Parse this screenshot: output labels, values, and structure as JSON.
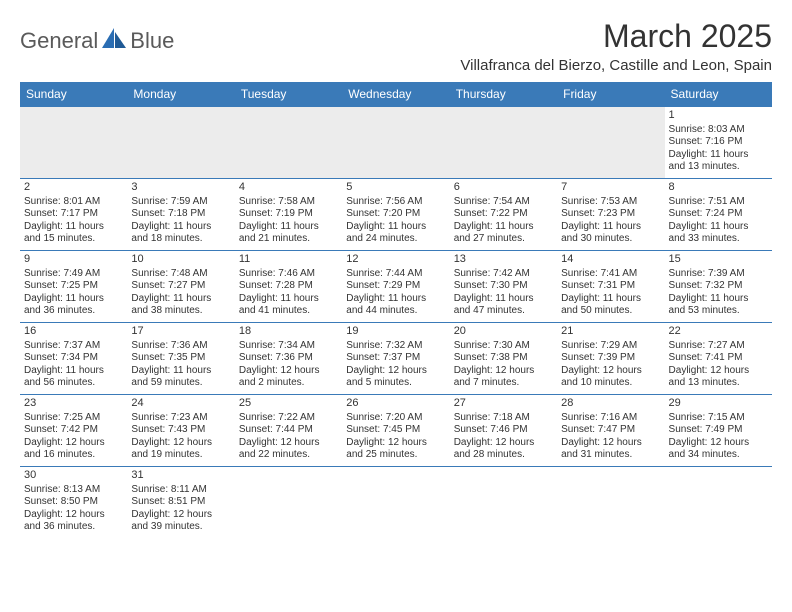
{
  "brand": {
    "name_part1": "General",
    "name_part2": "Blue"
  },
  "title": "March 2025",
  "subtitle": "Villafranca del Bierzo, Castille and Leon, Spain",
  "colors": {
    "header_bg": "#3a7ab8",
    "header_text": "#ffffff",
    "border": "#3a7ab8",
    "body_text": "#333333",
    "logo_gray": "#5a5a5a",
    "logo_blue": "#2a6db3",
    "empty_bg": "#ececec"
  },
  "weekdays": [
    "Sunday",
    "Monday",
    "Tuesday",
    "Wednesday",
    "Thursday",
    "Friday",
    "Saturday"
  ],
  "weeks": [
    [
      null,
      null,
      null,
      null,
      null,
      null,
      {
        "n": "1",
        "sr": "Sunrise: 8:03 AM",
        "ss": "Sunset: 7:16 PM",
        "d1": "Daylight: 11 hours",
        "d2": "and 13 minutes."
      }
    ],
    [
      {
        "n": "2",
        "sr": "Sunrise: 8:01 AM",
        "ss": "Sunset: 7:17 PM",
        "d1": "Daylight: 11 hours",
        "d2": "and 15 minutes."
      },
      {
        "n": "3",
        "sr": "Sunrise: 7:59 AM",
        "ss": "Sunset: 7:18 PM",
        "d1": "Daylight: 11 hours",
        "d2": "and 18 minutes."
      },
      {
        "n": "4",
        "sr": "Sunrise: 7:58 AM",
        "ss": "Sunset: 7:19 PM",
        "d1": "Daylight: 11 hours",
        "d2": "and 21 minutes."
      },
      {
        "n": "5",
        "sr": "Sunrise: 7:56 AM",
        "ss": "Sunset: 7:20 PM",
        "d1": "Daylight: 11 hours",
        "d2": "and 24 minutes."
      },
      {
        "n": "6",
        "sr": "Sunrise: 7:54 AM",
        "ss": "Sunset: 7:22 PM",
        "d1": "Daylight: 11 hours",
        "d2": "and 27 minutes."
      },
      {
        "n": "7",
        "sr": "Sunrise: 7:53 AM",
        "ss": "Sunset: 7:23 PM",
        "d1": "Daylight: 11 hours",
        "d2": "and 30 minutes."
      },
      {
        "n": "8",
        "sr": "Sunrise: 7:51 AM",
        "ss": "Sunset: 7:24 PM",
        "d1": "Daylight: 11 hours",
        "d2": "and 33 minutes."
      }
    ],
    [
      {
        "n": "9",
        "sr": "Sunrise: 7:49 AM",
        "ss": "Sunset: 7:25 PM",
        "d1": "Daylight: 11 hours",
        "d2": "and 36 minutes."
      },
      {
        "n": "10",
        "sr": "Sunrise: 7:48 AM",
        "ss": "Sunset: 7:27 PM",
        "d1": "Daylight: 11 hours",
        "d2": "and 38 minutes."
      },
      {
        "n": "11",
        "sr": "Sunrise: 7:46 AM",
        "ss": "Sunset: 7:28 PM",
        "d1": "Daylight: 11 hours",
        "d2": "and 41 minutes."
      },
      {
        "n": "12",
        "sr": "Sunrise: 7:44 AM",
        "ss": "Sunset: 7:29 PM",
        "d1": "Daylight: 11 hours",
        "d2": "and 44 minutes."
      },
      {
        "n": "13",
        "sr": "Sunrise: 7:42 AM",
        "ss": "Sunset: 7:30 PM",
        "d1": "Daylight: 11 hours",
        "d2": "and 47 minutes."
      },
      {
        "n": "14",
        "sr": "Sunrise: 7:41 AM",
        "ss": "Sunset: 7:31 PM",
        "d1": "Daylight: 11 hours",
        "d2": "and 50 minutes."
      },
      {
        "n": "15",
        "sr": "Sunrise: 7:39 AM",
        "ss": "Sunset: 7:32 PM",
        "d1": "Daylight: 11 hours",
        "d2": "and 53 minutes."
      }
    ],
    [
      {
        "n": "16",
        "sr": "Sunrise: 7:37 AM",
        "ss": "Sunset: 7:34 PM",
        "d1": "Daylight: 11 hours",
        "d2": "and 56 minutes."
      },
      {
        "n": "17",
        "sr": "Sunrise: 7:36 AM",
        "ss": "Sunset: 7:35 PM",
        "d1": "Daylight: 11 hours",
        "d2": "and 59 minutes."
      },
      {
        "n": "18",
        "sr": "Sunrise: 7:34 AM",
        "ss": "Sunset: 7:36 PM",
        "d1": "Daylight: 12 hours",
        "d2": "and 2 minutes."
      },
      {
        "n": "19",
        "sr": "Sunrise: 7:32 AM",
        "ss": "Sunset: 7:37 PM",
        "d1": "Daylight: 12 hours",
        "d2": "and 5 minutes."
      },
      {
        "n": "20",
        "sr": "Sunrise: 7:30 AM",
        "ss": "Sunset: 7:38 PM",
        "d1": "Daylight: 12 hours",
        "d2": "and 7 minutes."
      },
      {
        "n": "21",
        "sr": "Sunrise: 7:29 AM",
        "ss": "Sunset: 7:39 PM",
        "d1": "Daylight: 12 hours",
        "d2": "and 10 minutes."
      },
      {
        "n": "22",
        "sr": "Sunrise: 7:27 AM",
        "ss": "Sunset: 7:41 PM",
        "d1": "Daylight: 12 hours",
        "d2": "and 13 minutes."
      }
    ],
    [
      {
        "n": "23",
        "sr": "Sunrise: 7:25 AM",
        "ss": "Sunset: 7:42 PM",
        "d1": "Daylight: 12 hours",
        "d2": "and 16 minutes."
      },
      {
        "n": "24",
        "sr": "Sunrise: 7:23 AM",
        "ss": "Sunset: 7:43 PM",
        "d1": "Daylight: 12 hours",
        "d2": "and 19 minutes."
      },
      {
        "n": "25",
        "sr": "Sunrise: 7:22 AM",
        "ss": "Sunset: 7:44 PM",
        "d1": "Daylight: 12 hours",
        "d2": "and 22 minutes."
      },
      {
        "n": "26",
        "sr": "Sunrise: 7:20 AM",
        "ss": "Sunset: 7:45 PM",
        "d1": "Daylight: 12 hours",
        "d2": "and 25 minutes."
      },
      {
        "n": "27",
        "sr": "Sunrise: 7:18 AM",
        "ss": "Sunset: 7:46 PM",
        "d1": "Daylight: 12 hours",
        "d2": "and 28 minutes."
      },
      {
        "n": "28",
        "sr": "Sunrise: 7:16 AM",
        "ss": "Sunset: 7:47 PM",
        "d1": "Daylight: 12 hours",
        "d2": "and 31 minutes."
      },
      {
        "n": "29",
        "sr": "Sunrise: 7:15 AM",
        "ss": "Sunset: 7:49 PM",
        "d1": "Daylight: 12 hours",
        "d2": "and 34 minutes."
      }
    ],
    [
      {
        "n": "30",
        "sr": "Sunrise: 8:13 AM",
        "ss": "Sunset: 8:50 PM",
        "d1": "Daylight: 12 hours",
        "d2": "and 36 minutes."
      },
      {
        "n": "31",
        "sr": "Sunrise: 8:11 AM",
        "ss": "Sunset: 8:51 PM",
        "d1": "Daylight: 12 hours",
        "d2": "and 39 minutes."
      },
      null,
      null,
      null,
      null,
      null
    ]
  ]
}
